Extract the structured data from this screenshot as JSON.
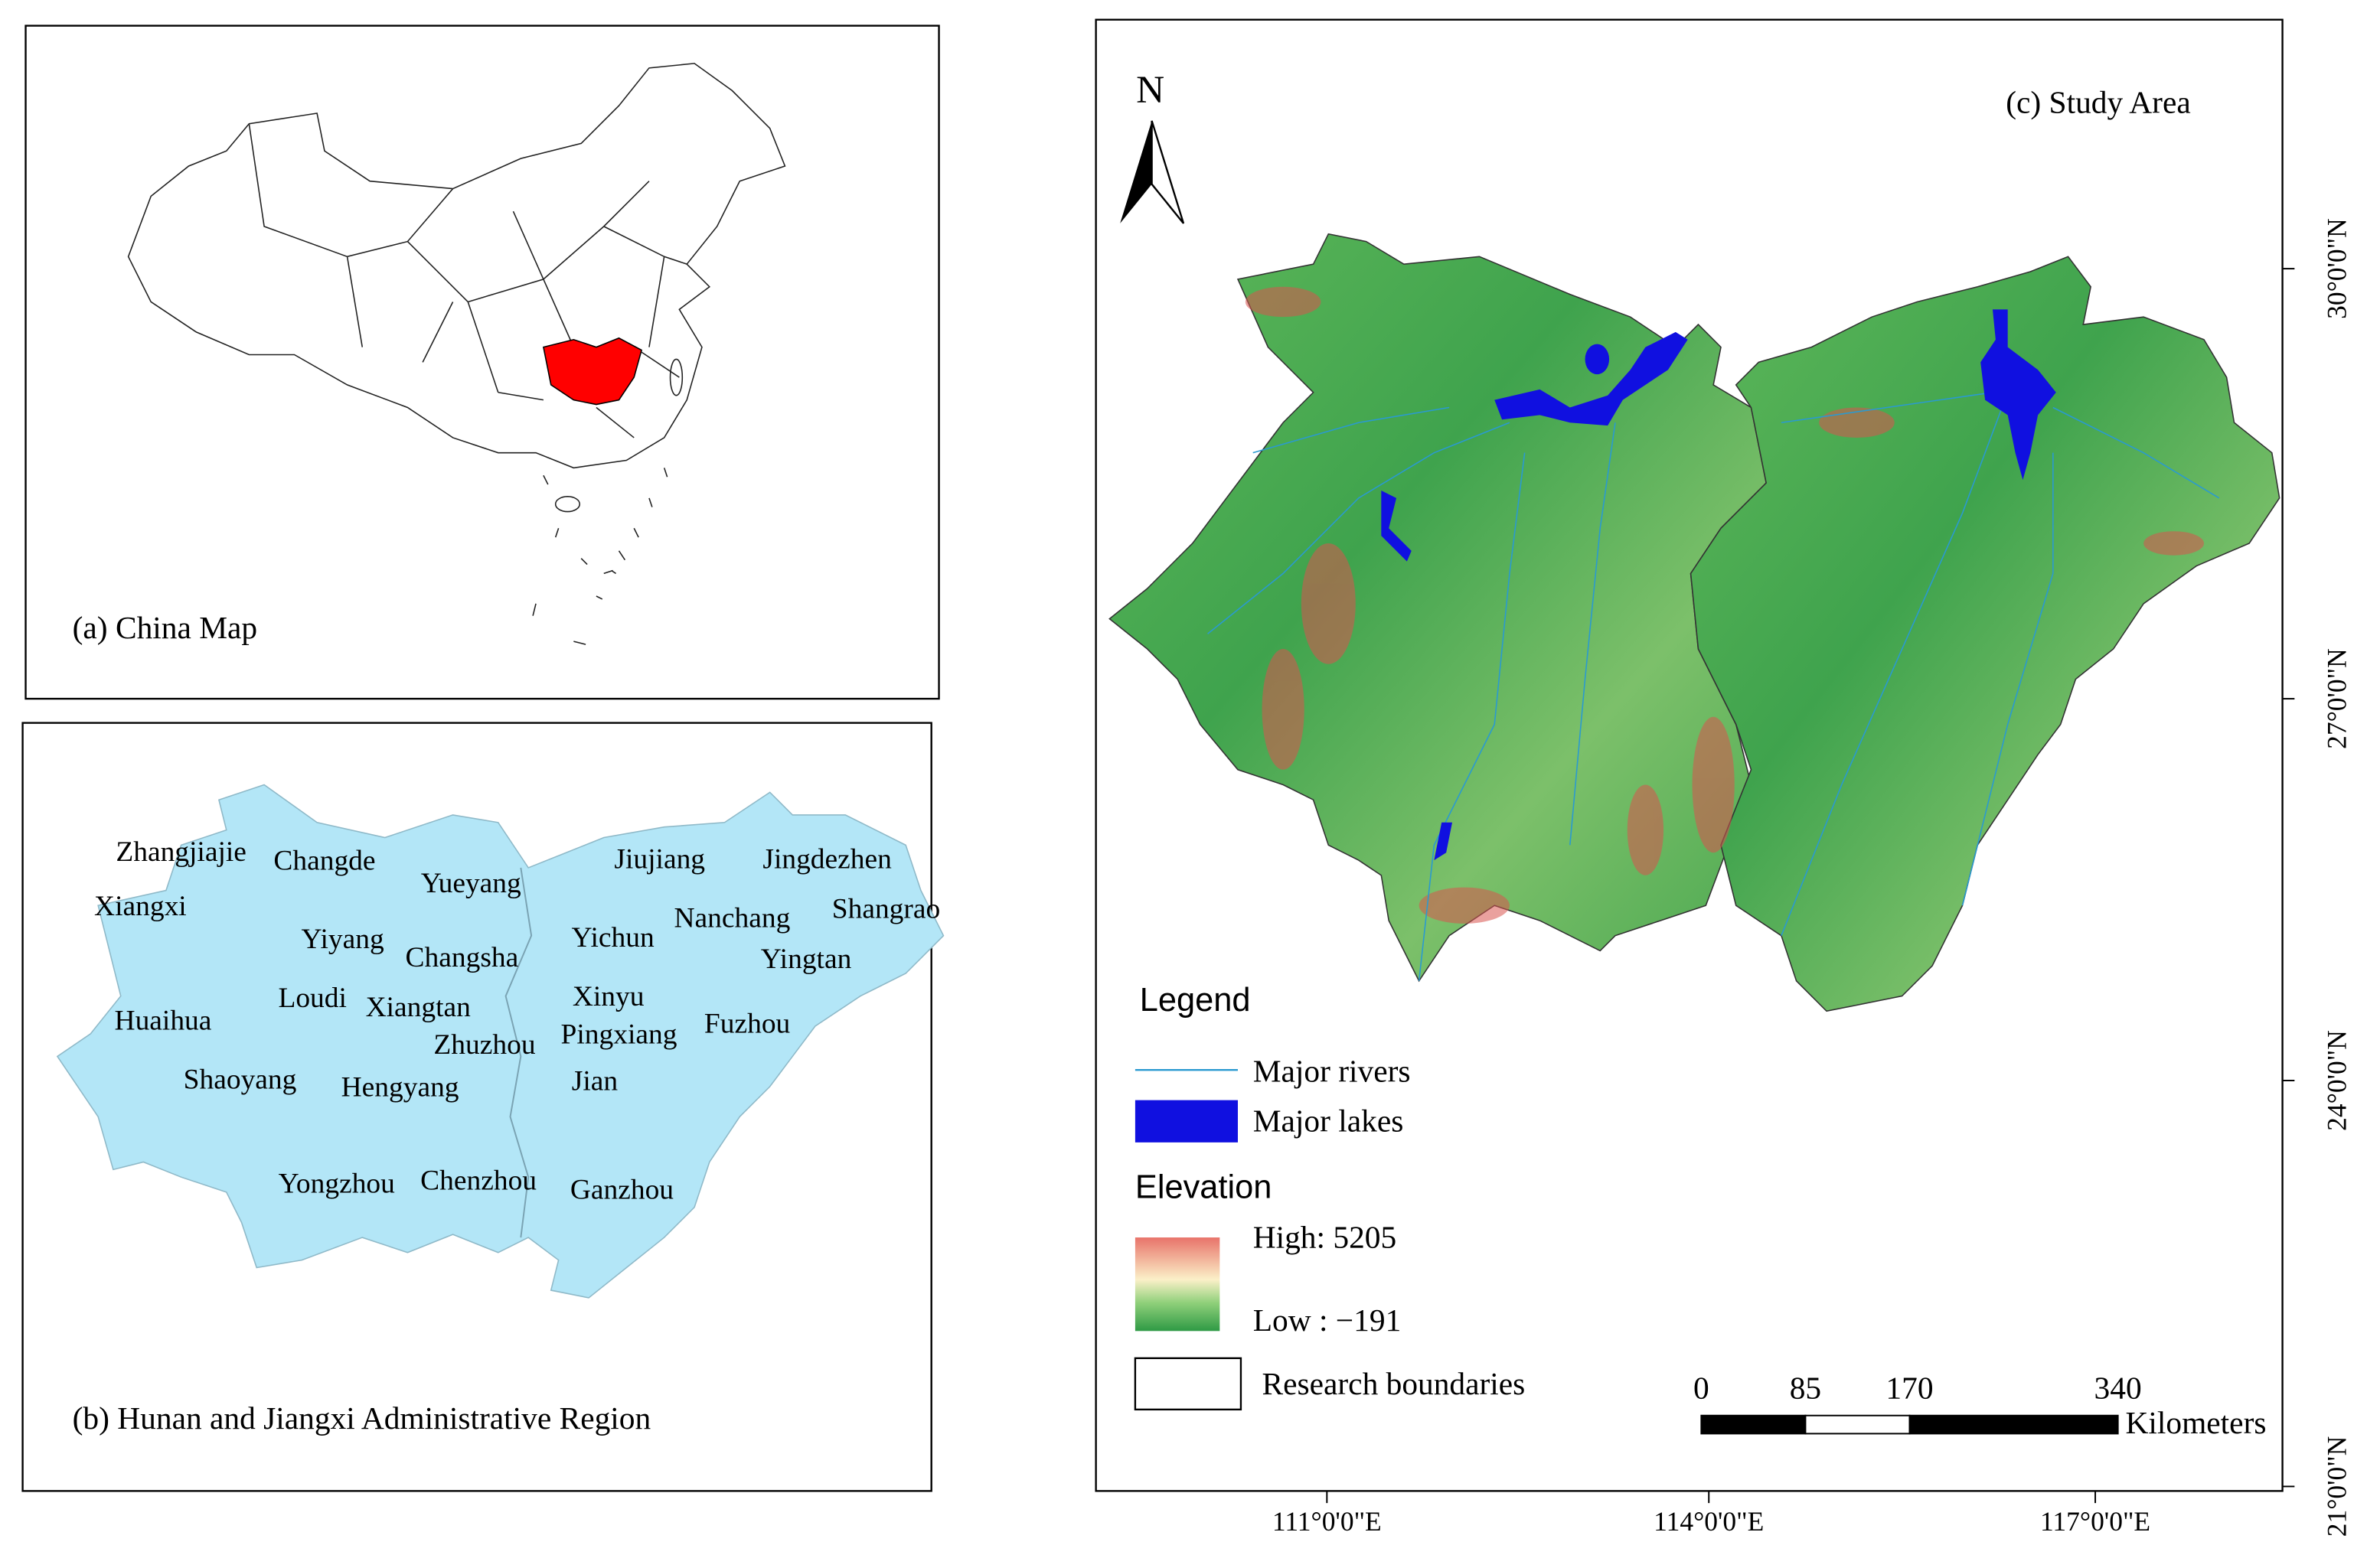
{
  "panels": [
    {
      "title": "(a) China Map"
    },
    {
      "title": "(b) Hunan and Jiangxi Administrative Region",
      "cities": [
        "Zhangjiajie",
        "Changde",
        "Yueyang",
        "Jiujiang",
        "Jingdezhen",
        "Xiangxi",
        "Shangrao",
        "Yiyang",
        "Changsha",
        "Yichun",
        "Nanchang",
        "Yingtan",
        "Loudi",
        "Xiangtan",
        "Xinyu",
        "Huaihua",
        "Zhuzhou",
        "Pingxiang",
        "Fuzhou",
        "Shaoyang",
        "Hengyang",
        "Jian",
        "Yongzhou",
        "Chenzhou",
        "Ganzhou"
      ]
    },
    {
      "title": "(c) Study Area",
      "north": "N",
      "legend": {
        "title": "Legend",
        "rivers": "Major rivers",
        "lakes": "Major lakes",
        "elevation": {
          "title": "Elevation",
          "high": "High: 5205",
          "low": "Low : −191"
        },
        "boundary": "Research boundaries"
      },
      "scale": {
        "ticks": [
          0,
          85,
          170,
          340
        ],
        "unit": "Kilometers"
      },
      "lon_labels": [
        "111°0'0\"E",
        "114°0'0\"E",
        "117°0'0\"E"
      ],
      "lat_labels": [
        "30°0'0\"N",
        "27°0'0\"N",
        "24°0'0\"N",
        "21°0'0\"N"
      ]
    }
  ]
}
